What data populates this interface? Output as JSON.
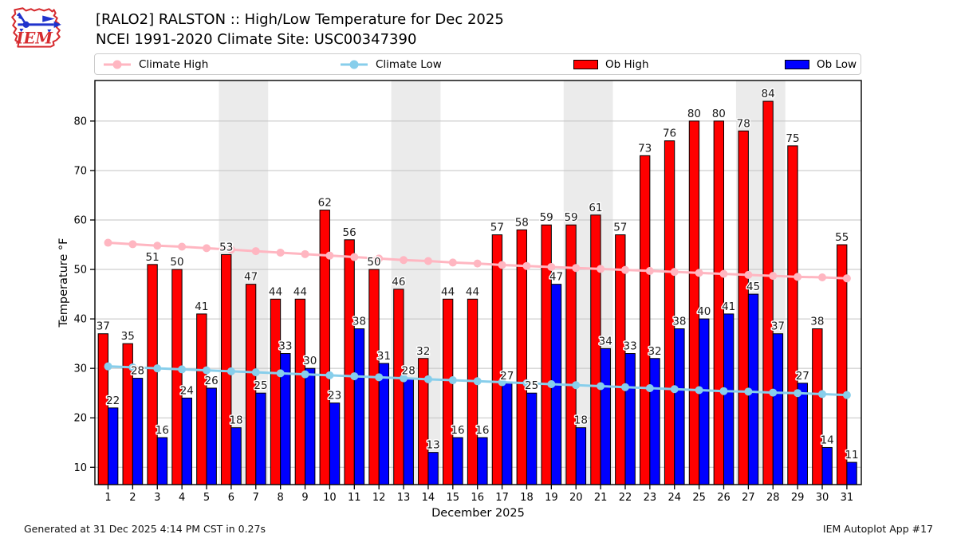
{
  "header": {
    "title_line1": "[RALO2] RALSTON :: High/Low Temperature for Dec 2025",
    "title_line2": "NCEI 1991-2020 Climate Site: USC00347390",
    "logo_text": "IEM"
  },
  "legend": {
    "climate_high": "Climate High",
    "climate_low": "Climate Low",
    "ob_high": "Ob High",
    "ob_low": "Ob Low"
  },
  "footer": {
    "generated": "Generated at 31 Dec 2025 4:14 PM CST in 0.27s",
    "app": "IEM Autoplot App #17"
  },
  "colors": {
    "ob_high": "#ff0000",
    "ob_low": "#0000ff",
    "climate_high": "#ffb6c1",
    "climate_low": "#87ceeb",
    "weekend_band": "#ebebeb",
    "grid": "#c3c3c3",
    "spine": "#000000",
    "value_label": "#1a1a1a",
    "legend_border": "#cccccc",
    "logo_red": "#d62b2f",
    "logo_blue": "#2033cc"
  },
  "chart_data": {
    "type": "bar",
    "title": "[RALO2] RALSTON :: High/Low Temperature for Dec 2025",
    "subtitle": "NCEI 1991-2020 Climate Site: USC00347390",
    "xlabel": "December 2025",
    "ylabel": "Temperature °F",
    "x": [
      1,
      2,
      3,
      4,
      5,
      6,
      7,
      8,
      9,
      10,
      11,
      12,
      13,
      14,
      15,
      16,
      17,
      18,
      19,
      20,
      21,
      22,
      23,
      24,
      25,
      26,
      27,
      28,
      29,
      30,
      31
    ],
    "series": [
      {
        "name": "Ob High",
        "type": "bar",
        "color": "#ff0000",
        "values": [
          37,
          35,
          51,
          50,
          41,
          53,
          47,
          44,
          44,
          62,
          56,
          50,
          46,
          32,
          44,
          44,
          57,
          58,
          59,
          59,
          61,
          57,
          73,
          76,
          80,
          80,
          78,
          84,
          75,
          38,
          55
        ]
      },
      {
        "name": "Ob Low",
        "type": "bar",
        "color": "#0000ff",
        "values": [
          22,
          28,
          16,
          24,
          26,
          18,
          25,
          33,
          30,
          23,
          38,
          31,
          28,
          13,
          16,
          16,
          27,
          25,
          47,
          18,
          34,
          33,
          32,
          38,
          40,
          41,
          45,
          37,
          27,
          14,
          11
        ]
      },
      {
        "name": "Climate High",
        "type": "line",
        "color": "#ffb6c1",
        "values": [
          55.4,
          55.1,
          54.8,
          54.6,
          54.3,
          54.0,
          53.7,
          53.4,
          53.1,
          52.8,
          52.5,
          52.2,
          51.9,
          51.7,
          51.4,
          51.2,
          50.9,
          50.7,
          50.5,
          50.3,
          50.1,
          49.9,
          49.7,
          49.5,
          49.3,
          49.1,
          48.9,
          48.7,
          48.5,
          48.4,
          48.2
        ]
      },
      {
        "name": "Climate Low",
        "type": "line",
        "color": "#87ceeb",
        "values": [
          30.4,
          30.2,
          30.0,
          29.8,
          29.6,
          29.4,
          29.2,
          29.0,
          28.8,
          28.6,
          28.4,
          28.2,
          28.0,
          27.8,
          27.6,
          27.4,
          27.2,
          27.0,
          26.8,
          26.6,
          26.4,
          26.2,
          26.0,
          25.8,
          25.6,
          25.4,
          25.3,
          25.1,
          25.0,
          24.8,
          24.6
        ]
      }
    ],
    "yticks": [
      10,
      20,
      30,
      40,
      50,
      60,
      70,
      80
    ],
    "ylim": [
      6.5,
      88.2
    ],
    "xlim": [
      0.45,
      31.6
    ],
    "weekend_bands": [
      [
        5.5,
        7.5
      ],
      [
        12.5,
        14.5
      ],
      [
        19.5,
        21.5
      ],
      [
        26.5,
        28.5
      ]
    ],
    "grid": true,
    "legend_position": "top",
    "bar_value_labels": true
  }
}
